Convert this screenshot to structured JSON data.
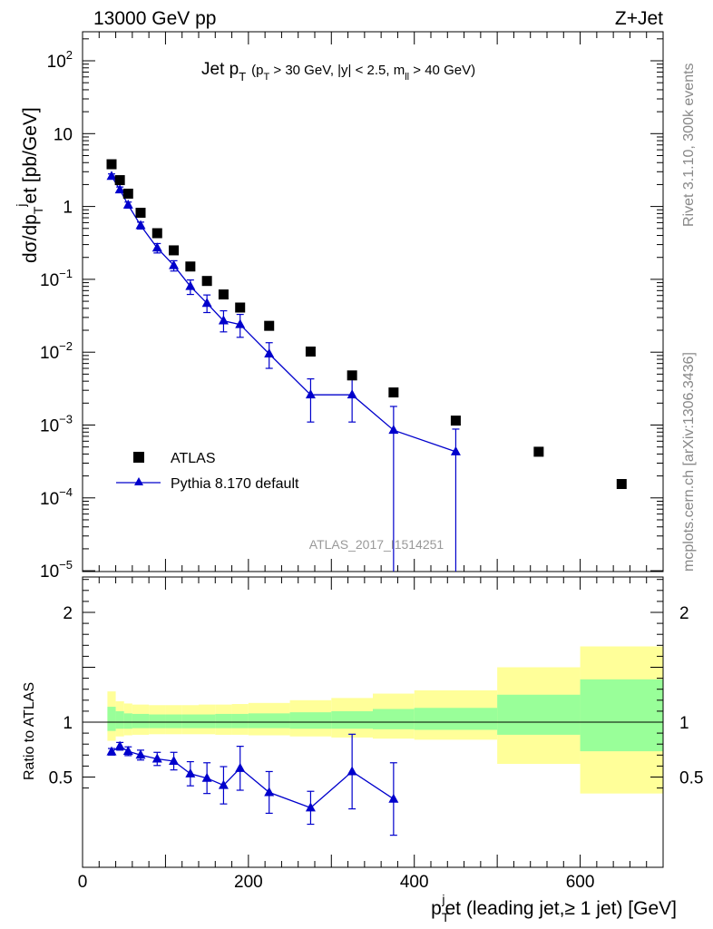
{
  "header": {
    "left": "13000 GeV pp",
    "right": "Z+Jet"
  },
  "side_labels": {
    "rivet": "Rivet 3.1.10,  300k events",
    "mcplots": "mcplots.cern.ch [arXiv:1306.3436]"
  },
  "chart_data": [
    {
      "type": "scatter",
      "title": {
        "main": "Jet p",
        "main_sub": "T",
        "cut_open": "(p",
        "cut_sub": "T",
        "cut_mid": " > 30 GeV, |y| < 2.5, m",
        "cut_sub2": "ll",
        "cut_close": " > 40 GeV)"
      },
      "ylabel": "dσ/dp_T^jet [pb/GeV]",
      "yscale": "log",
      "ylim": [
        1e-05,
        250
      ],
      "xlim": [
        0,
        700
      ],
      "grid": false,
      "legend_placement": "bottom-left",
      "watermark": "ATLAS_2017_I1514251",
      "ytick_labels": [
        {
          "base": "10",
          "exp": "2"
        },
        {
          "base": "10",
          "exp": ""
        },
        {
          "base": "1",
          "exp": ""
        },
        {
          "base": "10",
          "exp": "−1"
        },
        {
          "base": "10",
          "exp": "−2"
        },
        {
          "base": "10",
          "exp": "−3"
        },
        {
          "base": "10",
          "exp": "−4"
        },
        {
          "base": "10",
          "exp": "−5"
        }
      ],
      "series": [
        {
          "name": "ATLAS",
          "marker": "square",
          "color": "#000000",
          "x": [
            35,
            45,
            55,
            70,
            90,
            110,
            130,
            150,
            170,
            190,
            225,
            275,
            325,
            375,
            450,
            550,
            650
          ],
          "y": [
            3.8,
            2.3,
            1.5,
            0.82,
            0.43,
            0.25,
            0.15,
            0.095,
            0.062,
            0.041,
            0.023,
            0.0102,
            0.0048,
            0.0028,
            0.00115,
            0.00043,
            0.000155
          ]
        },
        {
          "name": "Pythia 8.170 default",
          "marker": "triangle",
          "color": "#0000cc",
          "x": [
            35,
            45,
            55,
            70,
            90,
            110,
            130,
            150,
            170,
            190,
            225,
            275,
            325,
            375,
            450
          ],
          "y": [
            2.6,
            1.7,
            1.05,
            0.55,
            0.27,
            0.155,
            0.08,
            0.047,
            0.027,
            0.024,
            0.0095,
            0.0026,
            0.0026,
            0.00085,
            0.00043
          ],
          "err_up": [
            0.2,
            0.15,
            0.1,
            0.06,
            0.04,
            0.025,
            0.018,
            0.014,
            0.01,
            0.009,
            0.004,
            0.0017,
            0.0021,
            0.00095,
            0.00045
          ],
          "err_down": [
            0.2,
            0.15,
            0.1,
            0.06,
            0.04,
            0.025,
            0.018,
            0.012,
            0.008,
            0.008,
            0.0035,
            0.0015,
            0.0015,
            0.00085,
            0.00043
          ]
        }
      ]
    },
    {
      "type": "line",
      "ylabel": "Ratio to ATLAS",
      "xlabel": "p_T^jet (leading jet,≥ 1 jet) [GeV]",
      "xlabel_parts": {
        "p": "p",
        "sub": "T",
        "sup": "j",
        "rest": "et (leading jet,≥ 1 jet) [GeV]"
      },
      "xlim": [
        0,
        700
      ],
      "ylim": [
        0.35,
        2.3
      ],
      "xticks": [
        0,
        200,
        400,
        600
      ],
      "yticks": [
        0.5,
        1,
        2
      ],
      "reference_line": 1,
      "bands": {
        "edges": [
          30,
          40,
          50,
          60,
          80,
          100,
          120,
          140,
          160,
          180,
          200,
          250,
          300,
          350,
          400,
          500,
          600,
          700
        ],
        "green_lo": [
          0.92,
          0.94,
          0.94,
          0.945,
          0.945,
          0.945,
          0.945,
          0.945,
          0.945,
          0.945,
          0.945,
          0.94,
          0.94,
          0.935,
          0.93,
          0.885,
          0.735
        ],
        "green_hi": [
          1.14,
          1.1,
          1.08,
          1.075,
          1.07,
          1.07,
          1.07,
          1.07,
          1.075,
          1.075,
          1.08,
          1.09,
          1.1,
          1.12,
          1.13,
          1.25,
          1.39
        ],
        "yellow_lo": [
          0.83,
          0.87,
          0.88,
          0.885,
          0.89,
          0.89,
          0.89,
          0.89,
          0.885,
          0.885,
          0.88,
          0.87,
          0.86,
          0.85,
          0.84,
          0.62,
          0.35
        ],
        "yellow_hi": [
          1.28,
          1.19,
          1.17,
          1.16,
          1.155,
          1.155,
          1.155,
          1.16,
          1.16,
          1.165,
          1.175,
          1.2,
          1.22,
          1.26,
          1.29,
          1.5,
          1.69
        ]
      },
      "series": [
        {
          "name": "Pythia 8.170 default",
          "color": "#0000cc",
          "x": [
            35,
            45,
            55,
            70,
            90,
            110,
            130,
            150,
            170,
            190,
            225,
            275,
            325,
            375
          ],
          "y": [
            0.73,
            0.78,
            0.735,
            0.7,
            0.665,
            0.645,
            0.53,
            0.49,
            0.425,
            0.58,
            0.36,
            0.22,
            0.55,
            0.3
          ],
          "err": [
            0.03,
            0.035,
            0.04,
            0.045,
            0.06,
            0.08,
            0.11,
            0.14,
            0.17,
            0.2,
            0.19,
            0.15,
            0.34,
            0.33
          ]
        }
      ]
    }
  ]
}
